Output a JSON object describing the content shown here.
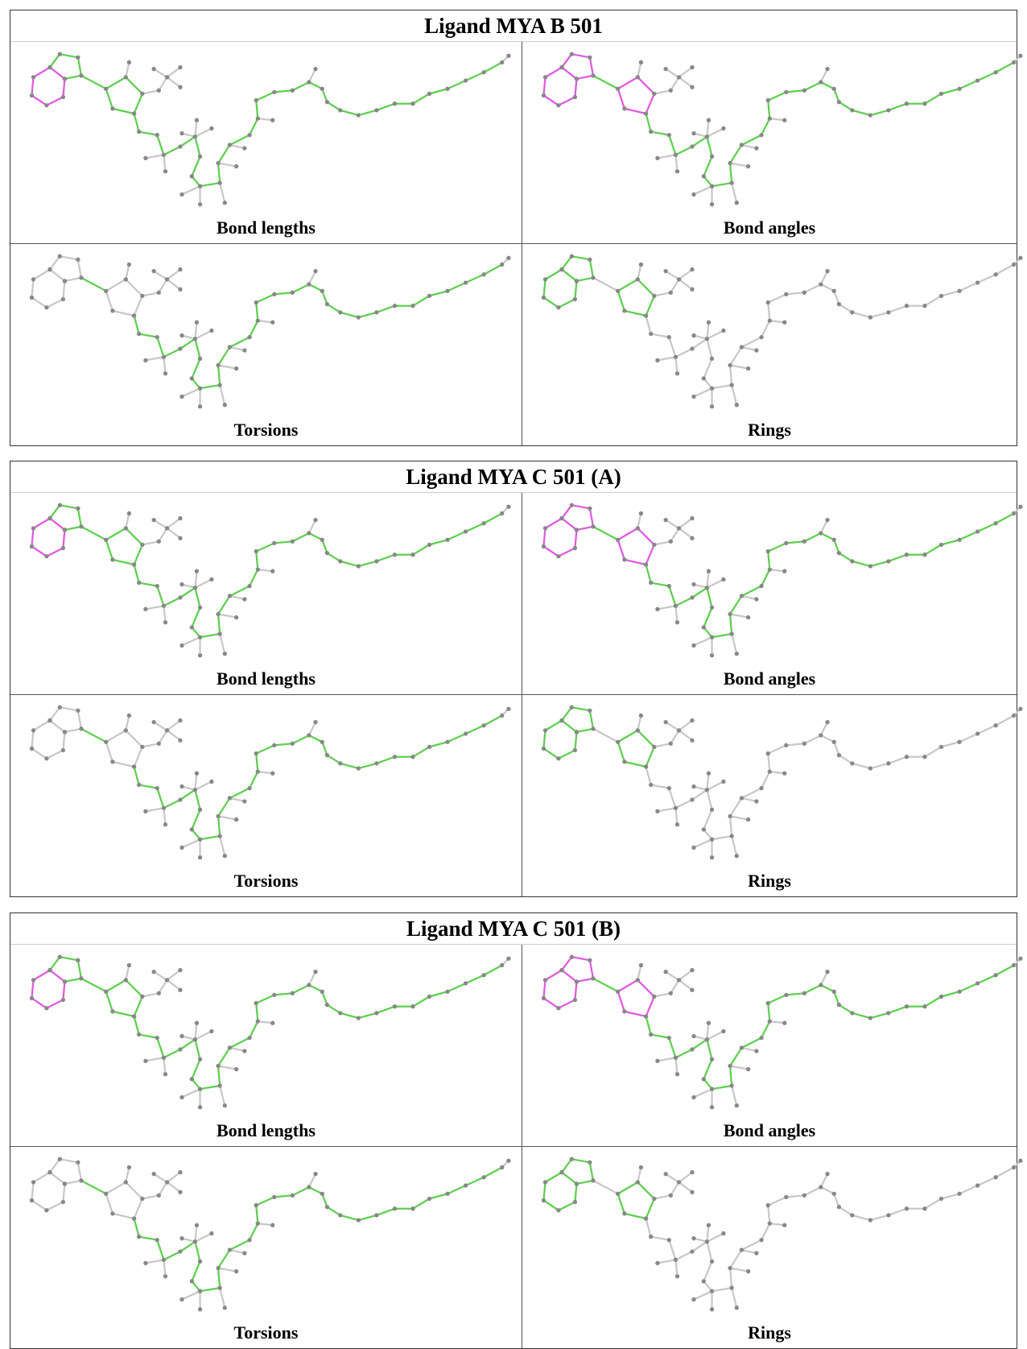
{
  "tables": [
    {
      "title": "Ligand MYA B 501",
      "panels": [
        "Bond lengths",
        "Bond angles",
        "Torsions",
        "Rings"
      ]
    },
    {
      "title": "Ligand MYA C 501 (A)",
      "panels": [
        "Bond lengths",
        "Bond angles",
        "Torsions",
        "Rings"
      ]
    },
    {
      "title": "Ligand MYA C 501 (B)",
      "panels": [
        "Bond lengths",
        "Bond angles",
        "Torsions",
        "Rings"
      ]
    }
  ]
}
